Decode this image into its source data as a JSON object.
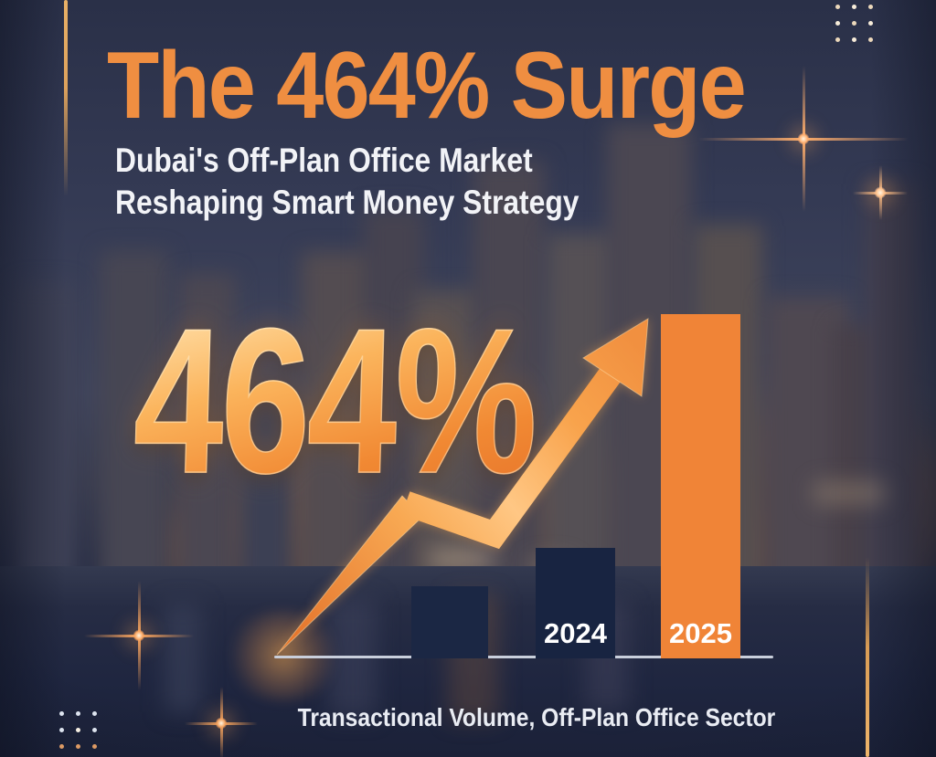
{
  "poster": {
    "title": "The 464% Surge",
    "subtitle_line1": "Dubai's Off-Plan Office Market",
    "subtitle_line2": "Reshaping Smart Money Strategy",
    "big_stat": "464%",
    "caption": "Transactional Volume, Off-Plan Office Sector"
  },
  "chart_data": {
    "type": "bar",
    "title": "Transactional Volume, Off-Plan Office Sector",
    "categories": [
      "",
      "2024",
      "2025"
    ],
    "values": [
      79,
      121,
      377
    ],
    "values_unit": "relative bar height in px (no numeric axis shown in image)",
    "bar_colors": [
      "#1b2744",
      "#182441",
      "#f08437"
    ],
    "annotation": "464%",
    "annotation_meaning": "surge from 2024 to 2025 highlighted by rising zigzag arrow",
    "xlabel": "",
    "ylabel": "",
    "grid": false,
    "legend": "none"
  },
  "colors": {
    "accent_orange": "#ef8e41",
    "bar_orange": "#f08437",
    "bar_navy": "#182441",
    "gold_light": "#ffd9a0",
    "background_navy": "#2a3048",
    "axis_line": "#c9cfdc",
    "text_white": "#f2f3f7"
  },
  "decor": {
    "sparkles": [
      "large-star-top-right",
      "small-star-top-right",
      "star-mid-left",
      "star-bottom-left",
      "glow-at-arrow-origin"
    ],
    "dot_grids": [
      "top-right",
      "bottom-left"
    ],
    "gold_lines": [
      "top-left-vertical",
      "bottom-right-vertical"
    ]
  }
}
